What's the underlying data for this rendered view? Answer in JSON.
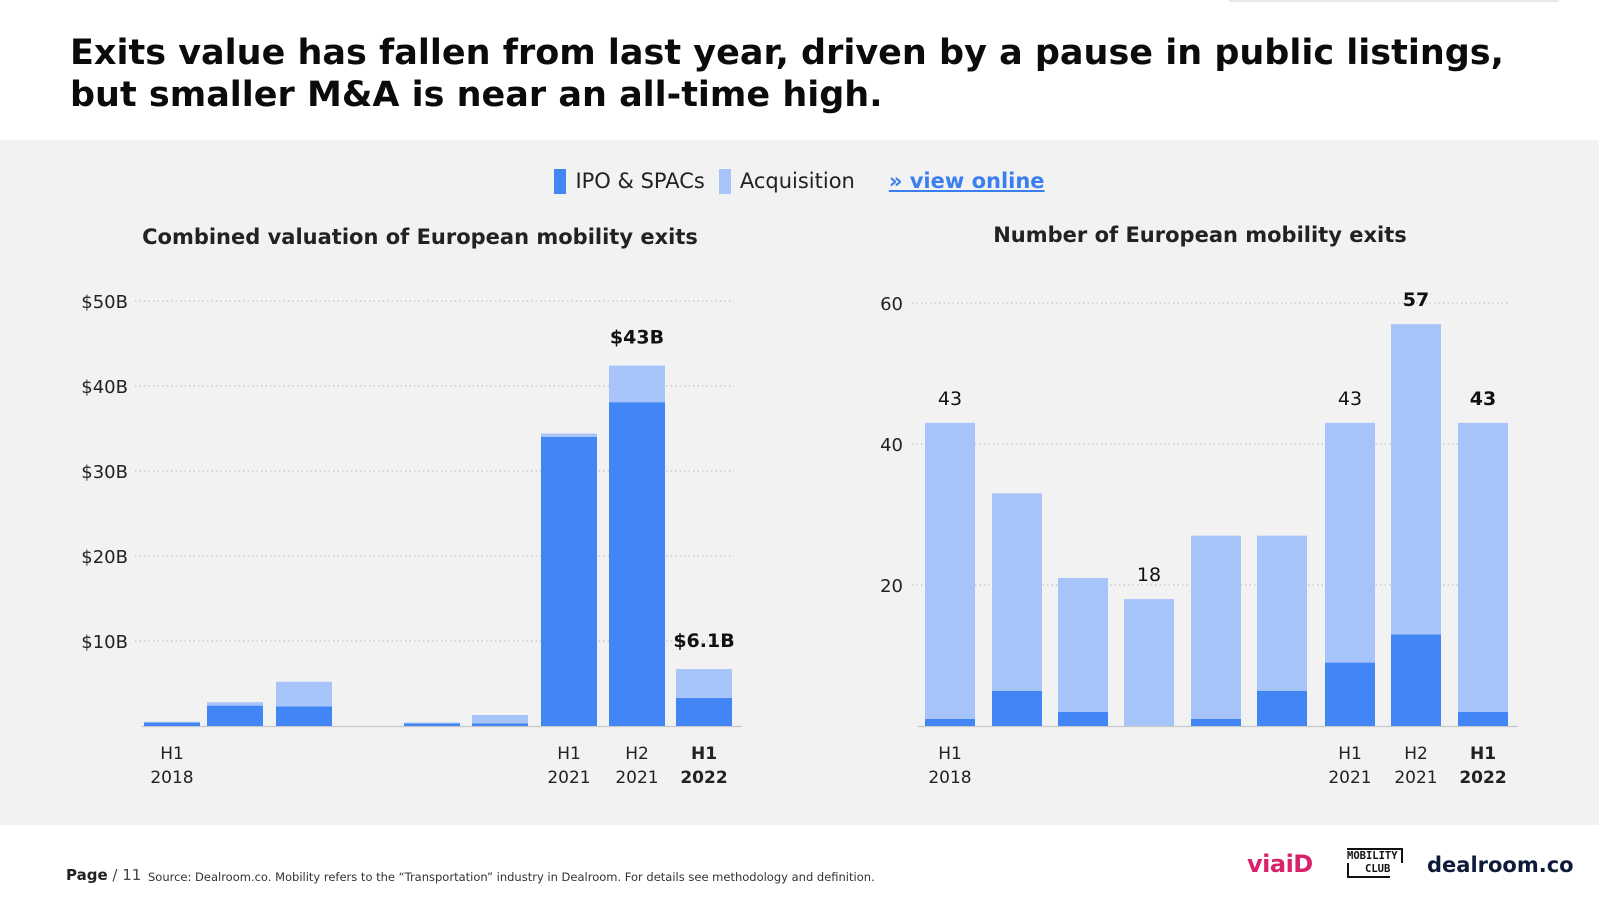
{
  "headline": "Exits value has fallen from last year, driven by a pause in public listings, but smaller M&A is near an all-time high.",
  "legend": {
    "ipo_label": "IPO & SPACs",
    "acq_label": "Acquisition",
    "link_label": "» view online"
  },
  "colors": {
    "ipo": "#4285f4",
    "acquisition": "#a6c4fa",
    "grid": "#b5b5b5",
    "panel": "#f2f2f2"
  },
  "chart_data": [
    {
      "type": "bar",
      "stacked": true,
      "title": "Combined valuation of European mobility exits",
      "categories": [
        "H1 2018",
        "H2 2018",
        "H1 2019",
        "H2 2019",
        "H1 2020",
        "H2 2020",
        "H1 2021",
        "H2 2021",
        "H1 2022"
      ],
      "visible_category_indices": [
        0,
        1,
        2,
        4,
        5,
        6,
        7,
        8
      ],
      "series": [
        {
          "name": "IPO & SPACs",
          "values": [
            0.4,
            2.4,
            2.3,
            0,
            0.3,
            0.3,
            34.0,
            38.1,
            3.3
          ]
        },
        {
          "name": "Acquisition",
          "values": [
            0.1,
            0.4,
            2.9,
            0,
            0.1,
            1.0,
            0.4,
            4.3,
            3.4
          ]
        }
      ],
      "ytick_labels": [
        "$10B",
        "$20B",
        "$30B",
        "$40B",
        "$50B"
      ],
      "yticks": [
        10,
        20,
        30,
        40,
        50
      ],
      "ylim": [
        0,
        50
      ],
      "xtick_labels": [
        {
          "index": 0,
          "line1": "H1",
          "line2": "2018",
          "bold": false
        },
        {
          "index": 6,
          "line1": "H1",
          "line2": "2021",
          "bold": false
        },
        {
          "index": 7,
          "line1": "H2",
          "line2": "2021",
          "bold": false
        },
        {
          "index": 8,
          "line1": "H1",
          "line2": "2022",
          "bold": true
        }
      ],
      "annotations": [
        {
          "index": 7,
          "text": "$43B",
          "bold": true
        },
        {
          "index": 8,
          "text": "$6.1B",
          "bold": true
        }
      ]
    },
    {
      "type": "bar",
      "stacked": true,
      "title": "Number of European mobility exits",
      "categories": [
        "H1 2018",
        "H2 2018",
        "H1 2019",
        "H2 2019",
        "H1 2020",
        "H2 2020",
        "H1 2021",
        "H2 2021",
        "H1 2022"
      ],
      "visible_category_indices": [
        0,
        1,
        2,
        3,
        4,
        5,
        6,
        7,
        8
      ],
      "series": [
        {
          "name": "IPO & SPACs",
          "values": [
            1,
            5,
            2,
            0,
            1,
            5,
            9,
            13,
            2
          ]
        },
        {
          "name": "Acquisition",
          "values": [
            42,
            28,
            19,
            18,
            26,
            22,
            34,
            44,
            41
          ]
        }
      ],
      "ytick_labels": [
        "20",
        "40",
        "60"
      ],
      "yticks": [
        20,
        40,
        60
      ],
      "ylim": [
        0,
        60
      ],
      "xtick_labels": [
        {
          "index": 0,
          "line1": "H1",
          "line2": "2018",
          "bold": false
        },
        {
          "index": 6,
          "line1": "H1",
          "line2": "2021",
          "bold": false
        },
        {
          "index": 7,
          "line1": "H2",
          "line2": "2021",
          "bold": false
        },
        {
          "index": 8,
          "line1": "H1",
          "line2": "2022",
          "bold": true
        }
      ],
      "annotations": [
        {
          "index": 0,
          "text": "43",
          "bold": false
        },
        {
          "index": 3,
          "text": "18",
          "bold": false
        },
        {
          "index": 6,
          "text": "43",
          "bold": false
        },
        {
          "index": 7,
          "text": "57",
          "bold": true
        },
        {
          "index": 8,
          "text": "43",
          "bold": true
        }
      ]
    }
  ],
  "footer": {
    "page_label": "Page",
    "page_number": "/ 11",
    "source": "Source: Dealroom.co.   Mobility refers to the “Transportation” industry in Dealroom. For details see methodology and definition."
  },
  "logos": {
    "viaid": "viaiD",
    "mobility_line1": "MOBILITY",
    "mobility_line2": "CLUB",
    "dealroom": "dealroom.co"
  }
}
